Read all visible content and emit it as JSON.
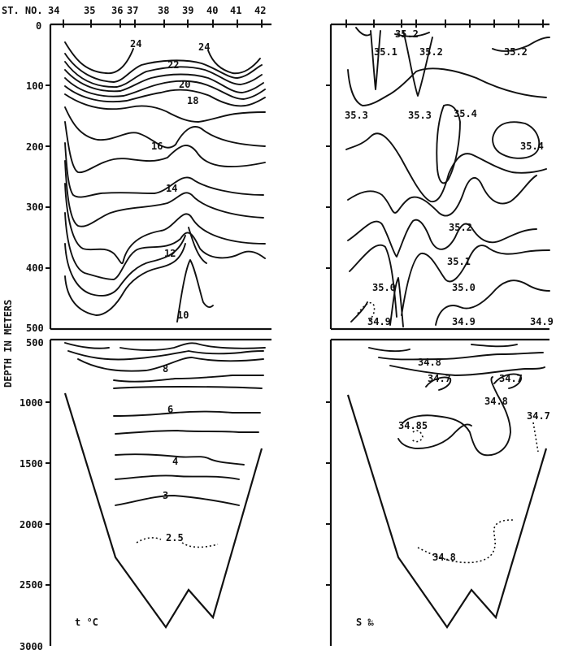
{
  "header": {
    "stations_prefix": "ST. NO.",
    "stations": [
      "34",
      "35",
      "36",
      "37",
      "38",
      "39",
      "40",
      "41",
      "42"
    ]
  },
  "y_axis_title": "DEPTH IN METERS",
  "upper_depth_ticks": [
    "0",
    "100",
    "200",
    "300",
    "400",
    "500"
  ],
  "lower_depth_ticks": [
    "500",
    "1000",
    "1500",
    "2000",
    "2500",
    "3000"
  ],
  "temperature_panel": {
    "caption": "t °C",
    "isotherm_labels": [
      "24",
      "24",
      "22",
      "20",
      "18",
      "16",
      "14",
      "12",
      "10",
      "8",
      "6",
      "4",
      "3",
      "2.5"
    ]
  },
  "salinity_panel": {
    "caption": "S ‰",
    "isohaline_labels": [
      "35.2",
      "35.1",
      "35.2",
      "35.2",
      "35.3",
      "35.3",
      "35.4",
      "35.4",
      "35.2",
      "35.1",
      "35.0",
      "35.0",
      "34.9",
      "34.9",
      "34.9",
      "34.8",
      "34.7",
      "34.7",
      "34.8",
      "34.85",
      "34.7",
      "34.8"
    ]
  }
}
